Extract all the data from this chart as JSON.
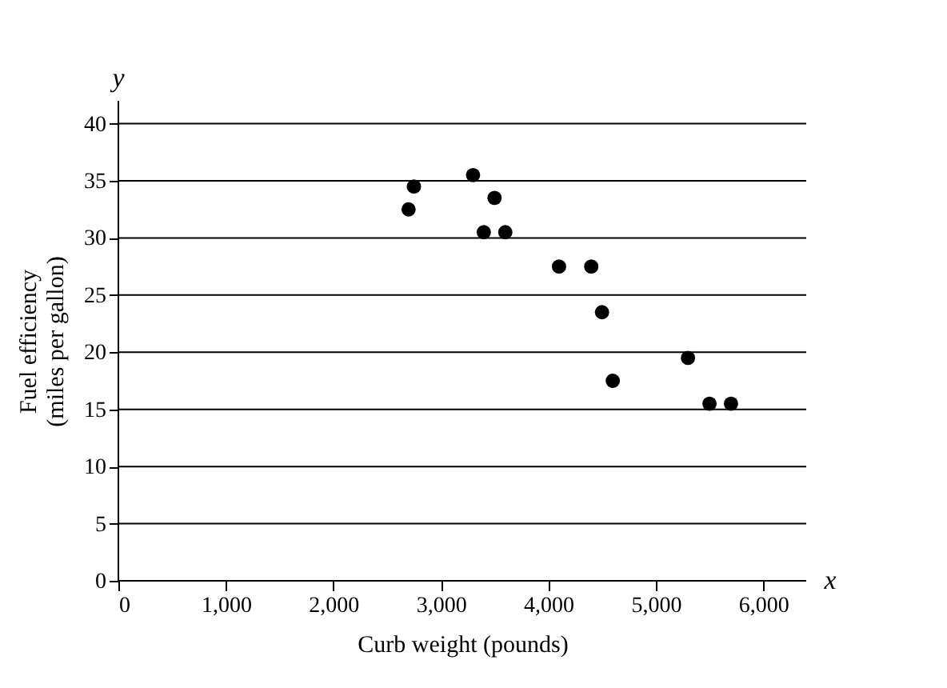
{
  "chart_data": {
    "type": "scatter",
    "xlabel": "Curb weight (pounds)",
    "ylabel": "Fuel efficiency\n(miles per gallon)",
    "x": [
      2700,
      2750,
      3300,
      3400,
      3500,
      3600,
      4100,
      4400,
      4500,
      4600,
      5300,
      5500,
      5700
    ],
    "series": [
      {
        "color": "#000000",
        "values": [
          32.5,
          34.5,
          35.5,
          30.5,
          33.5,
          30.5,
          27.5,
          27.5,
          23.5,
          17.5,
          19.5,
          15.5,
          15.5
        ]
      }
    ],
    "xlim": [
      0,
      6400
    ],
    "ylim": [
      0,
      42
    ],
    "xticks": [
      0,
      {
        "value": 1000,
        "label": "1,000"
      },
      {
        "value": 2000,
        "label": "2,000"
      },
      {
        "value": 3000,
        "label": "3,000"
      },
      {
        "value": 4000,
        "label": "4,000"
      },
      {
        "value": 5000,
        "label": "5,000"
      },
      {
        "value": 6000,
        "label": "6,000"
      }
    ],
    "yticks": [
      0,
      5,
      10,
      15,
      20,
      25,
      30,
      35,
      40
    ],
    "grid": "y",
    "marker": "circle",
    "annotations": [
      "y",
      "x"
    ]
  }
}
